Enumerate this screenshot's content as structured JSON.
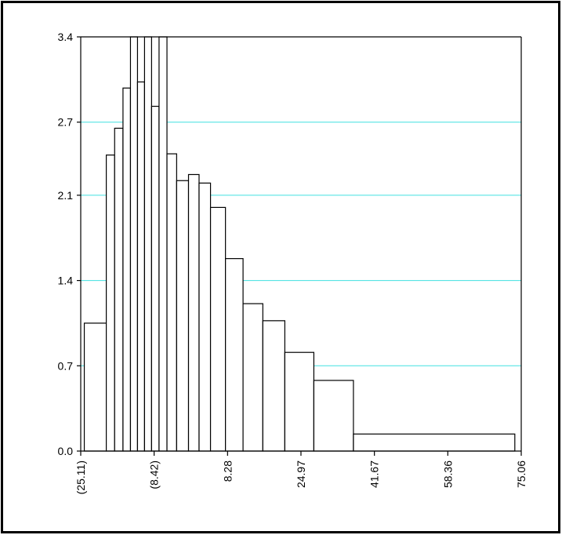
{
  "chart_data": {
    "type": "bar",
    "title": "",
    "xlabel": "",
    "ylabel": "",
    "xlim": [
      -25.11,
      75.06
    ],
    "ylim": [
      0,
      3.4
    ],
    "x_ticks": [
      -25.11,
      -8.42,
      8.28,
      24.97,
      41.67,
      58.36,
      75.06
    ],
    "x_tick_labels": [
      "(25.11)",
      "(8.42)",
      "8.28",
      "24.97",
      "41.67",
      "58.36",
      "75.06"
    ],
    "y_ticks": [
      0.0,
      0.7,
      1.4,
      2.1,
      2.7,
      3.4
    ],
    "y_tick_labels": [
      "0.0",
      "0.7",
      "1.4",
      "2.1",
      "2.7",
      "3.4"
    ],
    "grid": "horizontal",
    "colors": {
      "grid": "#40e0e0",
      "bar_stroke": "#000000",
      "bar_fill": "#ffffff",
      "frame": "#000000"
    },
    "bins": [
      {
        "x0": -24.3,
        "x1": -19.3,
        "value": 1.05
      },
      {
        "x0": -19.3,
        "x1": -17.4,
        "value": 2.43
      },
      {
        "x0": -17.4,
        "x1": -15.5,
        "value": 2.65
      },
      {
        "x0": -15.5,
        "x1": -13.8,
        "value": 2.98
      },
      {
        "x0": -13.8,
        "x1": -12.2,
        "value": 3.4
      },
      {
        "x0": -12.2,
        "x1": -10.6,
        "value": 3.03
      },
      {
        "x0": -10.6,
        "x1": -9.0,
        "value": 3.4
      },
      {
        "x0": -9.0,
        "x1": -7.3,
        "value": 2.83
      },
      {
        "x0": -7.3,
        "x1": -5.5,
        "value": 3.4
      },
      {
        "x0": -5.5,
        "x1": -3.3,
        "value": 2.44
      },
      {
        "x0": -3.3,
        "x1": -0.6,
        "value": 2.22
      },
      {
        "x0": -0.6,
        "x1": 1.8,
        "value": 2.27
      },
      {
        "x0": 1.8,
        "x1": 4.4,
        "value": 2.2
      },
      {
        "x0": 4.4,
        "x1": 7.8,
        "value": 2.0
      },
      {
        "x0": 7.8,
        "x1": 11.8,
        "value": 1.58
      },
      {
        "x0": 11.8,
        "x1": 16.3,
        "value": 1.21
      },
      {
        "x0": 16.3,
        "x1": 21.3,
        "value": 1.07
      },
      {
        "x0": 21.3,
        "x1": 27.9,
        "value": 0.81
      },
      {
        "x0": 27.9,
        "x1": 36.9,
        "value": 0.58
      },
      {
        "x0": 36.9,
        "x1": 73.6,
        "value": 0.14
      }
    ]
  }
}
